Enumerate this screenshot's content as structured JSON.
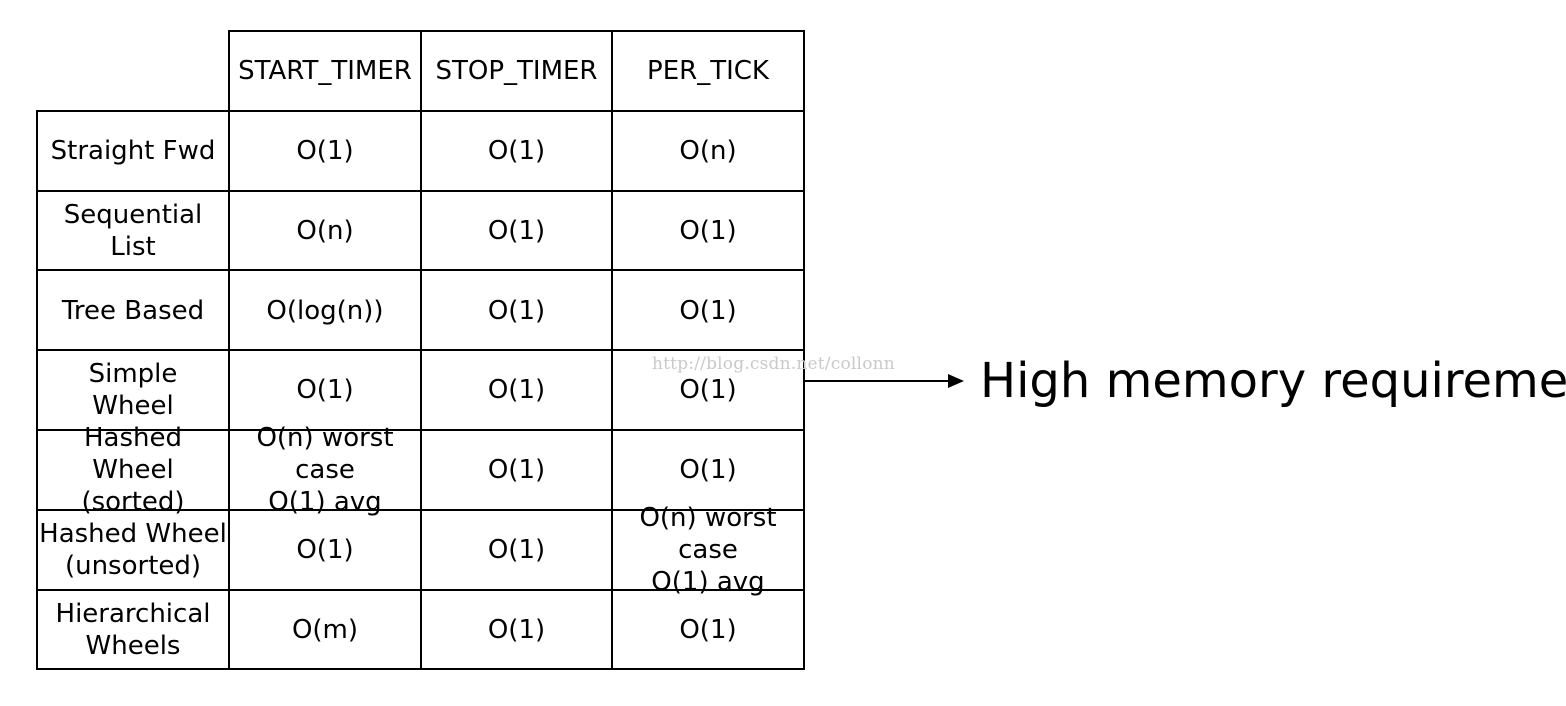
{
  "table": {
    "columns": [
      "START_TIMER",
      "STOP_TIMER",
      "PER_TICK"
    ],
    "rows": [
      {
        "label": "Straight Fwd",
        "cells": [
          "O(1)",
          "O(1)",
          "O(n)"
        ]
      },
      {
        "label": "Sequential\nList",
        "cells": [
          "O(n)",
          "O(1)",
          "O(1)"
        ]
      },
      {
        "label": "Tree Based",
        "cells": [
          "O(log(n))",
          "O(1)",
          "O(1)"
        ]
      },
      {
        "label": "Simple\nWheel",
        "cells": [
          "O(1)",
          "O(1)",
          "O(1)"
        ]
      },
      {
        "label": "Hashed\nWheel (sorted)",
        "cells": [
          "O(n) worst case\nO(1) avg",
          "O(1)",
          "O(1)"
        ]
      },
      {
        "label": "Hashed Wheel\n(unsorted)",
        "cells": [
          "O(1)",
          "O(1)",
          "O(n) worst case\nO(1) avg"
        ]
      },
      {
        "label": "Hierarchical\nWheels",
        "cells": [
          "O(m)",
          "O(1)",
          "O(1)"
        ]
      }
    ]
  },
  "annotation": {
    "text": "High memory requirement"
  },
  "watermark": "http://blog.csdn.net/collonn",
  "colors": {
    "line": "#000000",
    "watermark": "#c9c9c9"
  }
}
